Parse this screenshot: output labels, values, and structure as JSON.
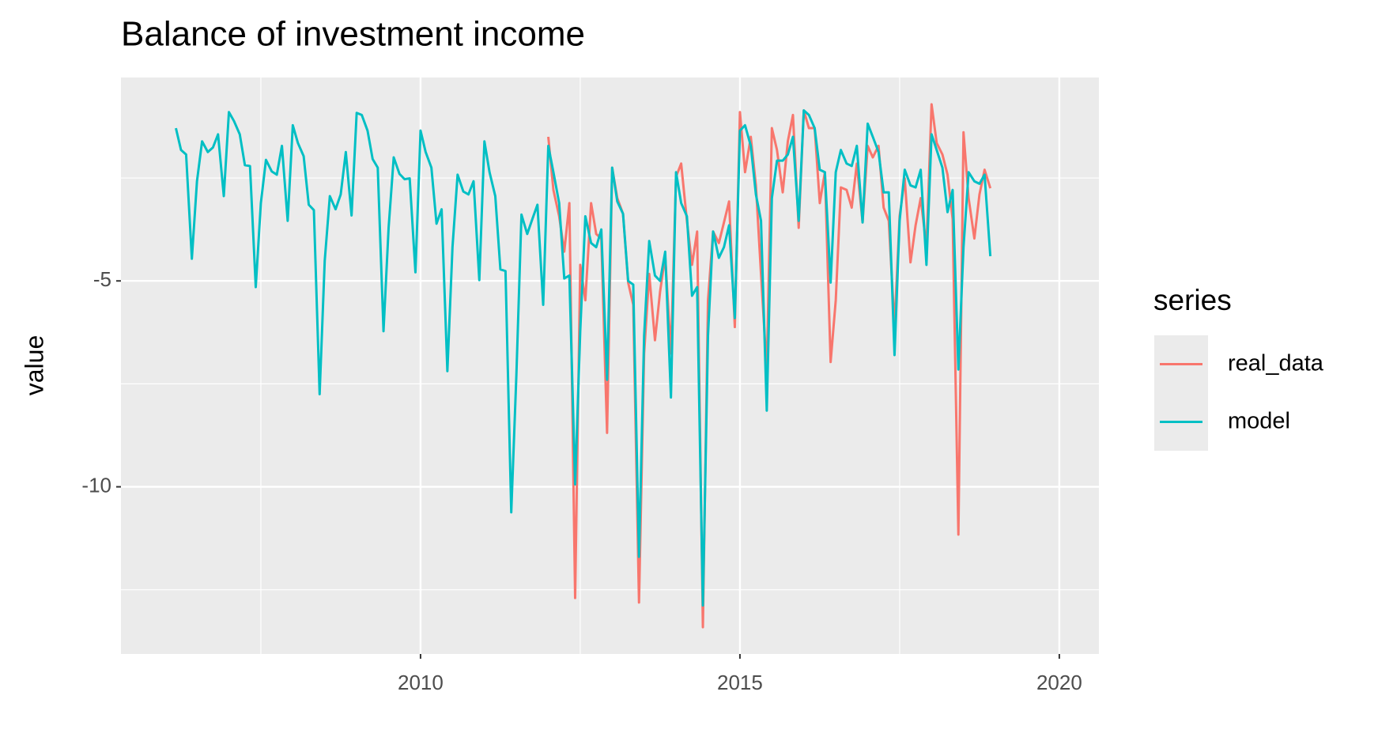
{
  "chart_data": {
    "type": "line",
    "title": "Balance of investment income",
    "y_label": "value",
    "legend_title": "series",
    "legend_position": "right",
    "grid": true,
    "xlim": [
      2005.31,
      2020.62
    ],
    "xticks": [
      2010,
      2015,
      2020
    ],
    "ylim": [
      -14.06,
      -0.06
    ],
    "yticks": [
      -10,
      -5
    ],
    "x": [
      2006.17,
      2006.25,
      2006.33,
      2006.42,
      2006.5,
      2006.58,
      2006.67,
      2006.75,
      2006.83,
      2006.92,
      2007,
      2007.08,
      2007.17,
      2007.25,
      2007.33,
      2007.42,
      2007.5,
      2007.58,
      2007.67,
      2007.75,
      2007.83,
      2007.92,
      2008,
      2008.08,
      2008.17,
      2008.25,
      2008.33,
      2008.42,
      2008.5,
      2008.58,
      2008.67,
      2008.75,
      2008.83,
      2008.92,
      2009,
      2009.08,
      2009.17,
      2009.25,
      2009.33,
      2009.42,
      2009.5,
      2009.58,
      2009.67,
      2009.75,
      2009.83,
      2009.92,
      2010,
      2010.08,
      2010.17,
      2010.25,
      2010.33,
      2010.42,
      2010.5,
      2010.58,
      2010.67,
      2010.75,
      2010.83,
      2010.92,
      2011,
      2011.08,
      2011.17,
      2011.25,
      2011.33,
      2011.42,
      2011.5,
      2011.58,
      2011.67,
      2011.75,
      2011.83,
      2011.92,
      2012,
      2012.08,
      2012.17,
      2012.25,
      2012.33,
      2012.42,
      2012.5,
      2012.58,
      2012.67,
      2012.75,
      2012.83,
      2012.92,
      2013,
      2013.08,
      2013.17,
      2013.25,
      2013.33,
      2013.42,
      2013.5,
      2013.58,
      2013.67,
      2013.75,
      2013.83,
      2013.92,
      2014,
      2014.08,
      2014.17,
      2014.25,
      2014.33,
      2014.42,
      2014.5,
      2014.58,
      2014.67,
      2014.75,
      2014.83,
      2014.92,
      2015,
      2015.08,
      2015.17,
      2015.25,
      2015.33,
      2015.42,
      2015.5,
      2015.58,
      2015.67,
      2015.75,
      2015.83,
      2015.92,
      2016,
      2016.08,
      2016.17,
      2016.25,
      2016.33,
      2016.42,
      2016.5,
      2016.58,
      2016.67,
      2016.75,
      2016.83,
      2016.92,
      2017,
      2017.08,
      2017.17,
      2017.25,
      2017.33,
      2017.42,
      2017.5,
      2017.58,
      2017.67,
      2017.75,
      2017.83,
      2017.92,
      2018,
      2018.08,
      2018.17,
      2018.25,
      2018.33,
      2018.42,
      2018.5,
      2018.58,
      2018.67,
      2018.75,
      2018.83,
      2018.92
    ],
    "series": [
      {
        "name": "real_data",
        "color": "#F8766D",
        "values": [
          null,
          null,
          null,
          null,
          null,
          null,
          null,
          null,
          null,
          null,
          null,
          null,
          null,
          null,
          null,
          null,
          null,
          null,
          null,
          null,
          null,
          null,
          null,
          null,
          null,
          null,
          null,
          null,
          null,
          null,
          null,
          null,
          null,
          null,
          null,
          null,
          null,
          null,
          null,
          null,
          null,
          null,
          null,
          null,
          null,
          null,
          null,
          null,
          null,
          null,
          null,
          null,
          null,
          null,
          null,
          null,
          null,
          null,
          null,
          null,
          null,
          null,
          null,
          null,
          null,
          null,
          null,
          null,
          null,
          null,
          -1.5,
          -2.79,
          -3.43,
          -4.29,
          -3.11,
          -12.7,
          -4.61,
          -5.47,
          -3.11,
          -3.86,
          -3.97,
          -8.69,
          -2.25,
          -2.99,
          -3.37,
          -5.04,
          -5.58,
          -12.81,
          -6.76,
          -4.83,
          -6.44,
          -5.26,
          -4.4,
          -6.76,
          -2.47,
          -2.15,
          -3.54,
          -4.61,
          -3.8,
          -13.41,
          -5.47,
          -3.8,
          -4.08,
          -3.58,
          -3.07,
          -6.12,
          -0.9,
          -2.36,
          -1.5,
          -2.68,
          -4.83,
          -7.19,
          -1.29,
          -1.82,
          -2.85,
          -1.61,
          -0.97,
          -3.71,
          -0.86,
          -1.29,
          -1.29,
          -3.11,
          -2.36,
          -6.97,
          -5.47,
          -2.73,
          -2.79,
          -3.22,
          -2.15,
          -3.58,
          -1.72,
          -2.0,
          -1.72,
          -3.22,
          -3.54,
          -6.12,
          -3.43,
          -2.51,
          -4.55,
          -3.65,
          -2.99,
          -4.18,
          -0.71,
          -1.65,
          -1.93,
          -2.42,
          -3.5,
          -11.16,
          -1.39,
          -2.99,
          -3.97,
          -2.9,
          -2.3,
          -2.75
        ]
      },
      {
        "name": "model",
        "color": "#00BFC4",
        "values": [
          -1.29,
          -1.82,
          -1.93,
          -4.46,
          -2.58,
          -1.61,
          -1.87,
          -1.76,
          -1.44,
          -2.94,
          -0.9,
          -1.12,
          -1.44,
          -2.19,
          -2.21,
          -5.15,
          -3.11,
          -2.06,
          -2.34,
          -2.42,
          -1.72,
          -3.54,
          -1.22,
          -1.65,
          -1.97,
          -3.15,
          -3.28,
          -7.75,
          -4.51,
          -2.94,
          -3.26,
          -2.9,
          -1.87,
          -3.41,
          -0.92,
          -0.97,
          -1.35,
          -2.04,
          -2.25,
          -6.22,
          -3.71,
          -2.0,
          -2.4,
          -2.53,
          -2.51,
          -4.79,
          -1.35,
          -1.87,
          -2.25,
          -3.61,
          -3.26,
          -7.19,
          -4.18,
          -2.42,
          -2.83,
          -2.9,
          -2.58,
          -4.98,
          -1.61,
          -2.36,
          -2.94,
          -4.72,
          -4.76,
          -10.62,
          -7.3,
          -3.39,
          -3.86,
          -3.5,
          -3.15,
          -5.58,
          -1.72,
          -2.36,
          -3.11,
          -4.94,
          -4.87,
          -9.94,
          -6.22,
          -3.43,
          -4.08,
          -4.18,
          -3.75,
          -7.4,
          -2.25,
          -3.07,
          -3.37,
          -5.0,
          -5.09,
          -11.7,
          -6.33,
          -4.03,
          -4.87,
          -5.0,
          -4.29,
          -7.83,
          -2.36,
          -3.11,
          -3.43,
          -5.36,
          -5.15,
          -12.88,
          -6.33,
          -3.8,
          -4.44,
          -4.18,
          -3.65,
          -5.9,
          -1.35,
          -1.22,
          -1.72,
          -2.9,
          -3.54,
          -8.15,
          -2.99,
          -2.08,
          -2.08,
          -1.93,
          -1.5,
          -3.54,
          -0.86,
          -0.97,
          -1.29,
          -2.3,
          -2.36,
          -5.04,
          -2.36,
          -1.82,
          -2.15,
          -2.21,
          -1.72,
          -3.58,
          -1.18,
          -1.5,
          -1.87,
          -2.85,
          -2.85,
          -6.8,
          -3.54,
          -2.3,
          -2.68,
          -2.73,
          -2.3,
          -4.61,
          -1.44,
          -1.82,
          -2.25,
          -3.33,
          -2.79,
          -7.15,
          -4.18,
          -2.36,
          -2.58,
          -2.64,
          -2.42,
          -4.4
        ]
      }
    ]
  }
}
